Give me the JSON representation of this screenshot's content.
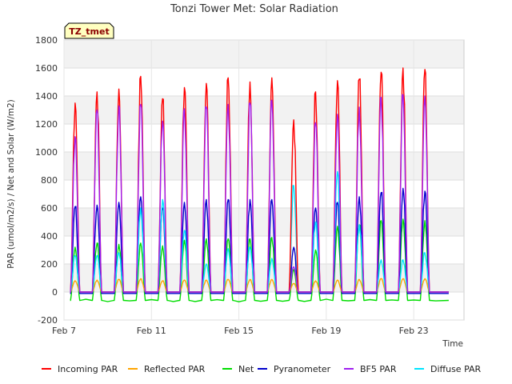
{
  "chart_data": {
    "type": "line",
    "title": "Tonzi Tower Met: Solar Radiation",
    "xlabel": "Time",
    "ylabel": "PAR (umol/m2/s) / Net and Solar (W/m2)",
    "badge": "TZ_tmet",
    "xlim": [
      7.0,
      25.3
    ],
    "ylim": [
      -200,
      1800
    ],
    "yticks": [
      -200,
      0,
      200,
      400,
      600,
      800,
      1000,
      1200,
      1400,
      1600,
      1800
    ],
    "xticks": [
      {
        "value": 7,
        "label": "Feb 7"
      },
      {
        "value": 11,
        "label": "Feb 11"
      },
      {
        "value": 15,
        "label": "Feb 15"
      },
      {
        "value": 19,
        "label": "Feb 19"
      },
      {
        "value": 23,
        "label": "Feb 23"
      }
    ],
    "day_peaks": {
      "days": [
        7,
        8,
        9,
        10,
        11,
        12,
        13,
        14,
        15,
        16,
        17,
        18,
        19,
        20,
        21,
        22,
        23,
        24
      ],
      "series": [
        {
          "name": "Incoming PAR",
          "color": "#ff0000",
          "night": 0,
          "peaks": [
            1350,
            1430,
            1450,
            1540,
            1380,
            1460,
            1490,
            1530,
            1500,
            1530,
            1230,
            1430,
            1510,
            1520,
            1570,
            1600,
            1590,
            null
          ]
        },
        {
          "name": "Reflected PAR",
          "color": "#ffa500",
          "night": 0,
          "peaks": [
            80,
            85,
            90,
            95,
            80,
            85,
            85,
            90,
            90,
            90,
            60,
            80,
            85,
            90,
            95,
            95,
            95,
            null
          ]
        },
        {
          "name": "Net",
          "color": "#00dd00",
          "night": -60,
          "peaks": [
            320,
            350,
            340,
            350,
            330,
            370,
            380,
            380,
            380,
            390,
            160,
            300,
            470,
            480,
            510,
            520,
            510,
            null
          ]
        },
        {
          "name": "Pyranometer",
          "color": "#0000cc",
          "night": -10,
          "peaks": [
            610,
            620,
            640,
            680,
            600,
            640,
            660,
            660,
            660,
            660,
            320,
            600,
            640,
            680,
            710,
            740,
            720,
            null
          ]
        },
        {
          "name": "BF5 PAR",
          "color": "#a020f0",
          "night": 0,
          "peaks": [
            1110,
            1300,
            1330,
            1340,
            1220,
            1310,
            1320,
            1340,
            1350,
            1370,
            180,
            1210,
            1270,
            1320,
            1390,
            1410,
            1400,
            null
          ]
        },
        {
          "name": "Diffuse PAR",
          "color": "#00e5ff",
          "night": 0,
          "peaks": [
            260,
            260,
            280,
            600,
            660,
            440,
            200,
            310,
            320,
            240,
            760,
            500,
            860,
            480,
            230,
            230,
            280,
            null
          ]
        }
      ]
    }
  }
}
